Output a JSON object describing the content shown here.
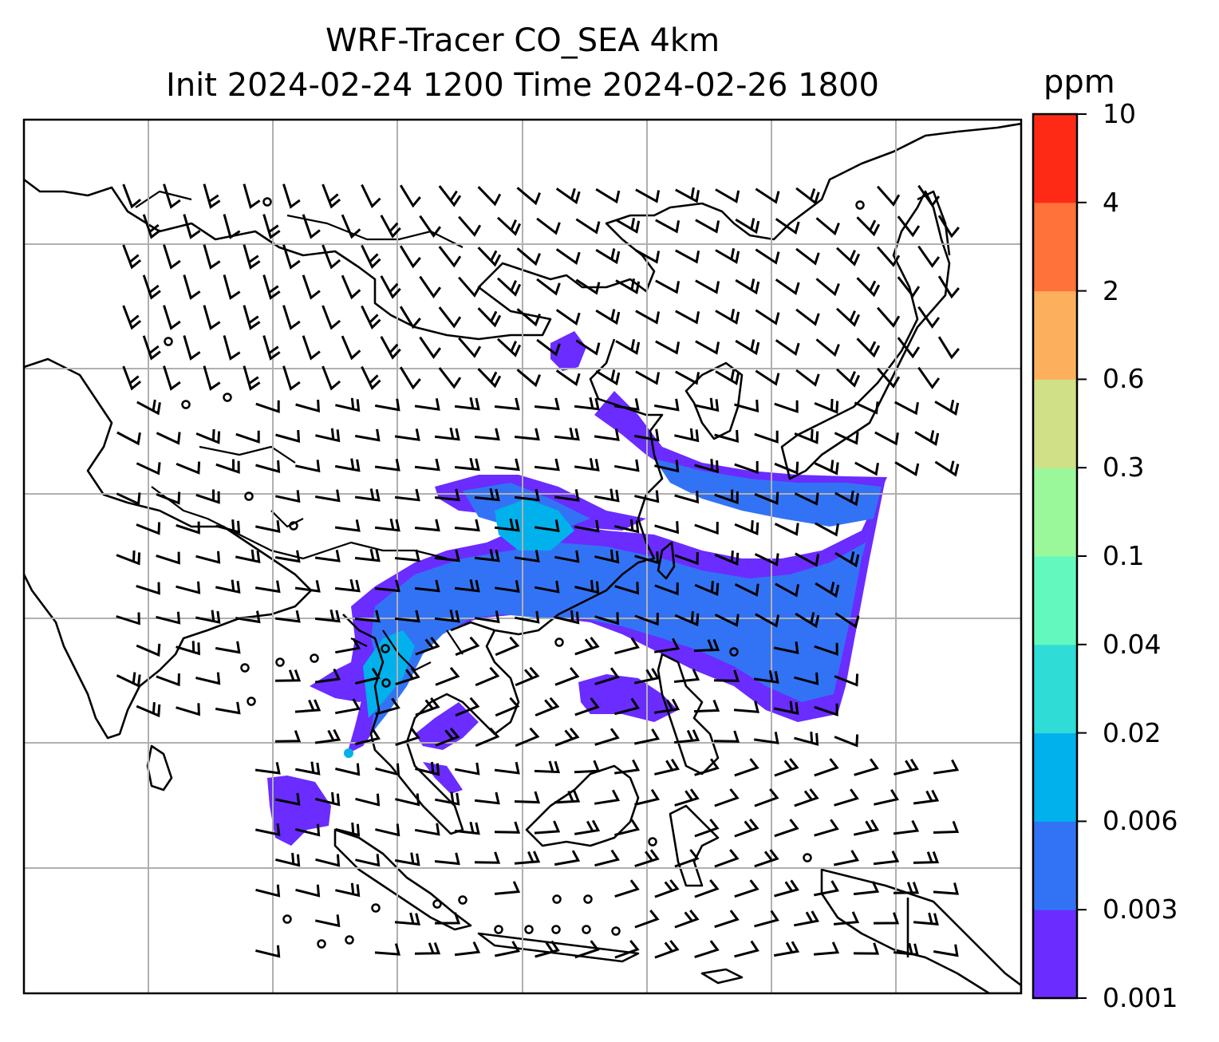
{
  "title": {
    "line1": "WRF-Tracer CO_SEA 4km",
    "line2": "Init 2024-02-24 1200 Time 2024-02-26 1800"
  },
  "colorbar": {
    "units": "ppm",
    "levels": [
      "0.001",
      "0.003",
      "0.006",
      "0.02",
      "0.04",
      "0.1",
      "0.3",
      "0.6",
      "2",
      "4",
      "10"
    ],
    "colors": [
      "#6a2cff",
      "#3273f5",
      "#00b1ec",
      "#30dcd6",
      "#63f8bd",
      "#9af89b",
      "#d0e087",
      "#fcb05e",
      "#ff723a",
      "#ff2a15"
    ]
  },
  "map": {
    "gridlines": true,
    "coastline_color": "#000000",
    "gridline_color": "#b0b0b0",
    "barb_color": "#000000",
    "calm_marker": "circle"
  }
}
